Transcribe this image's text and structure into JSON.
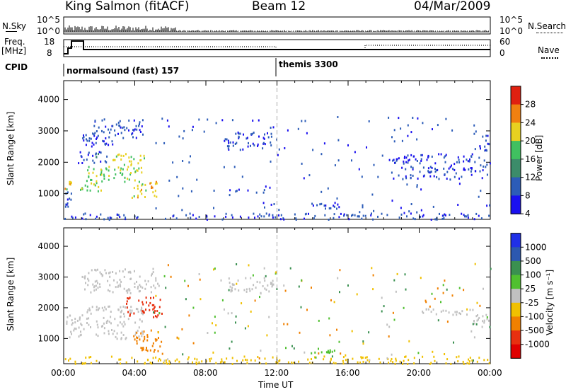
{
  "header": {
    "station": "King Salmon (fitACF)",
    "beam": "Beam 12",
    "date": "04/Mar/2009"
  },
  "top_panels": {
    "nsky_label": "N.Sky",
    "nsearch_label": "N.Search",
    "log_ticks": [
      "10^5",
      "10^0"
    ],
    "freq_label": "Freq.",
    "freq_unit": "[MHz]",
    "freq_ticks": [
      "18",
      "8"
    ],
    "nave_label": "Nave",
    "nave_ticks": [
      "60",
      "0"
    ],
    "cpid_label": "CPID",
    "programs": [
      {
        "name": "normalsound (fast) 157",
        "start_hour": 0.0
      },
      {
        "name": "themis 3300",
        "start_hour": 12.0
      }
    ]
  },
  "time_axis": {
    "label": "Time UT",
    "ticks": [
      "00:00",
      "04:00",
      "08:00",
      "12:00",
      "16:00",
      "20:00",
      "00:00"
    ]
  },
  "chart_data": [
    {
      "type": "heatmap",
      "panel": "power",
      "ylabel": "Slant Range [km]",
      "yticks": [
        1000,
        2000,
        3000,
        4000
      ],
      "ylim": [
        180,
        4600
      ],
      "xlim_hours": [
        0,
        24
      ],
      "colorbar_label": "Power [dB]",
      "colorbar_ticks": [
        "4",
        "8",
        "12",
        "16",
        "20",
        "24",
        "28"
      ],
      "colors": [
        "#1a10f0",
        "#2c5cb8",
        "#3c8c6a",
        "#40c060",
        "#e8d020",
        "#f08010",
        "#e02010"
      ],
      "regions": [
        {
          "t": [
            0.05,
            0.4
          ],
          "r": [
            1150,
            1500
          ],
          "level": 18
        },
        {
          "t": [
            0.05,
            0.4
          ],
          "r": [
            600,
            1150
          ],
          "level": 5
        },
        {
          "t": [
            0.9,
            2.2
          ],
          "r": [
            1100,
            1500
          ],
          "level": 16
        },
        {
          "t": [
            1.3,
            3.8
          ],
          "r": [
            1400,
            1900
          ],
          "level": 15
        },
        {
          "t": [
            2.5,
            4.5
          ],
          "r": [
            1700,
            2300
          ],
          "level": 17
        },
        {
          "t": [
            3.8,
            5.3
          ],
          "r": [
            900,
            1500
          ],
          "level": 18
        },
        {
          "t": [
            0.8,
            2.5
          ],
          "r": [
            2000,
            2400
          ],
          "level": 6
        },
        {
          "t": [
            1.0,
            3.0
          ],
          "r": [
            2500,
            3000
          ],
          "level": 5
        },
        {
          "t": [
            1.5,
            4.5
          ],
          "r": [
            2800,
            3400
          ],
          "level": 5
        },
        {
          "t": [
            9.0,
            11.8
          ],
          "r": [
            2400,
            3000
          ],
          "level": 5
        },
        {
          "t": [
            14.0,
            15.5
          ],
          "r": [
            550,
            750
          ],
          "level": 4
        },
        {
          "t": [
            18.5,
            23.8
          ],
          "r": [
            1500,
            2300
          ],
          "level": 4
        },
        {
          "t": [
            23.3,
            23.9
          ],
          "r": [
            2400,
            2900
          ],
          "level": 5
        },
        {
          "t": [
            0.0,
            24.0
          ],
          "r": [
            200,
            400
          ],
          "level": 5
        }
      ]
    },
    {
      "type": "heatmap",
      "panel": "velocity",
      "ylabel": "Slant Range [km]",
      "yticks": [
        1000,
        2000,
        3000,
        4000
      ],
      "ylim": [
        180,
        4600
      ],
      "xlim_hours": [
        0,
        24
      ],
      "colorbar_label": "Velocity [m s⁻¹]",
      "colorbar_ticks": [
        "1000",
        "500",
        "100",
        "25",
        "-25",
        "-100",
        "-500",
        "-1000"
      ],
      "colors": [
        "#2030e8",
        "#2c58b0",
        "#3a9050",
        "#50c030",
        "#c0c0c0",
        "#f0c000",
        "#f08000",
        "#e83010",
        "#e00000"
      ],
      "regions": [
        {
          "t": [
            0.05,
            1.0
          ],
          "r": [
            1000,
            1800
          ],
          "level": 0
        },
        {
          "t": [
            0.9,
            4.5
          ],
          "r": [
            1000,
            2100
          ],
          "level": 0
        },
        {
          "t": [
            3.8,
            5.5
          ],
          "r": [
            600,
            1300
          ],
          "level": -300
        },
        {
          "t": [
            3.5,
            5.5
          ],
          "r": [
            1700,
            2400
          ],
          "level": -600
        },
        {
          "t": [
            1.0,
            5.5
          ],
          "r": [
            2500,
            3300
          ],
          "level": 0
        },
        {
          "t": [
            9.0,
            11.8
          ],
          "r": [
            2500,
            3000
          ],
          "level": 0
        },
        {
          "t": [
            14.0,
            15.3
          ],
          "r": [
            550,
            700
          ],
          "level": 60
        },
        {
          "t": [
            20.0,
            23.0
          ],
          "r": [
            1800,
            2000
          ],
          "level": 0
        },
        {
          "t": [
            23.0,
            23.9
          ],
          "r": [
            1400,
            1800
          ],
          "level": 0
        },
        {
          "t": [
            0.0,
            24.0
          ],
          "r": [
            200,
            450
          ],
          "level": -60
        }
      ]
    }
  ]
}
